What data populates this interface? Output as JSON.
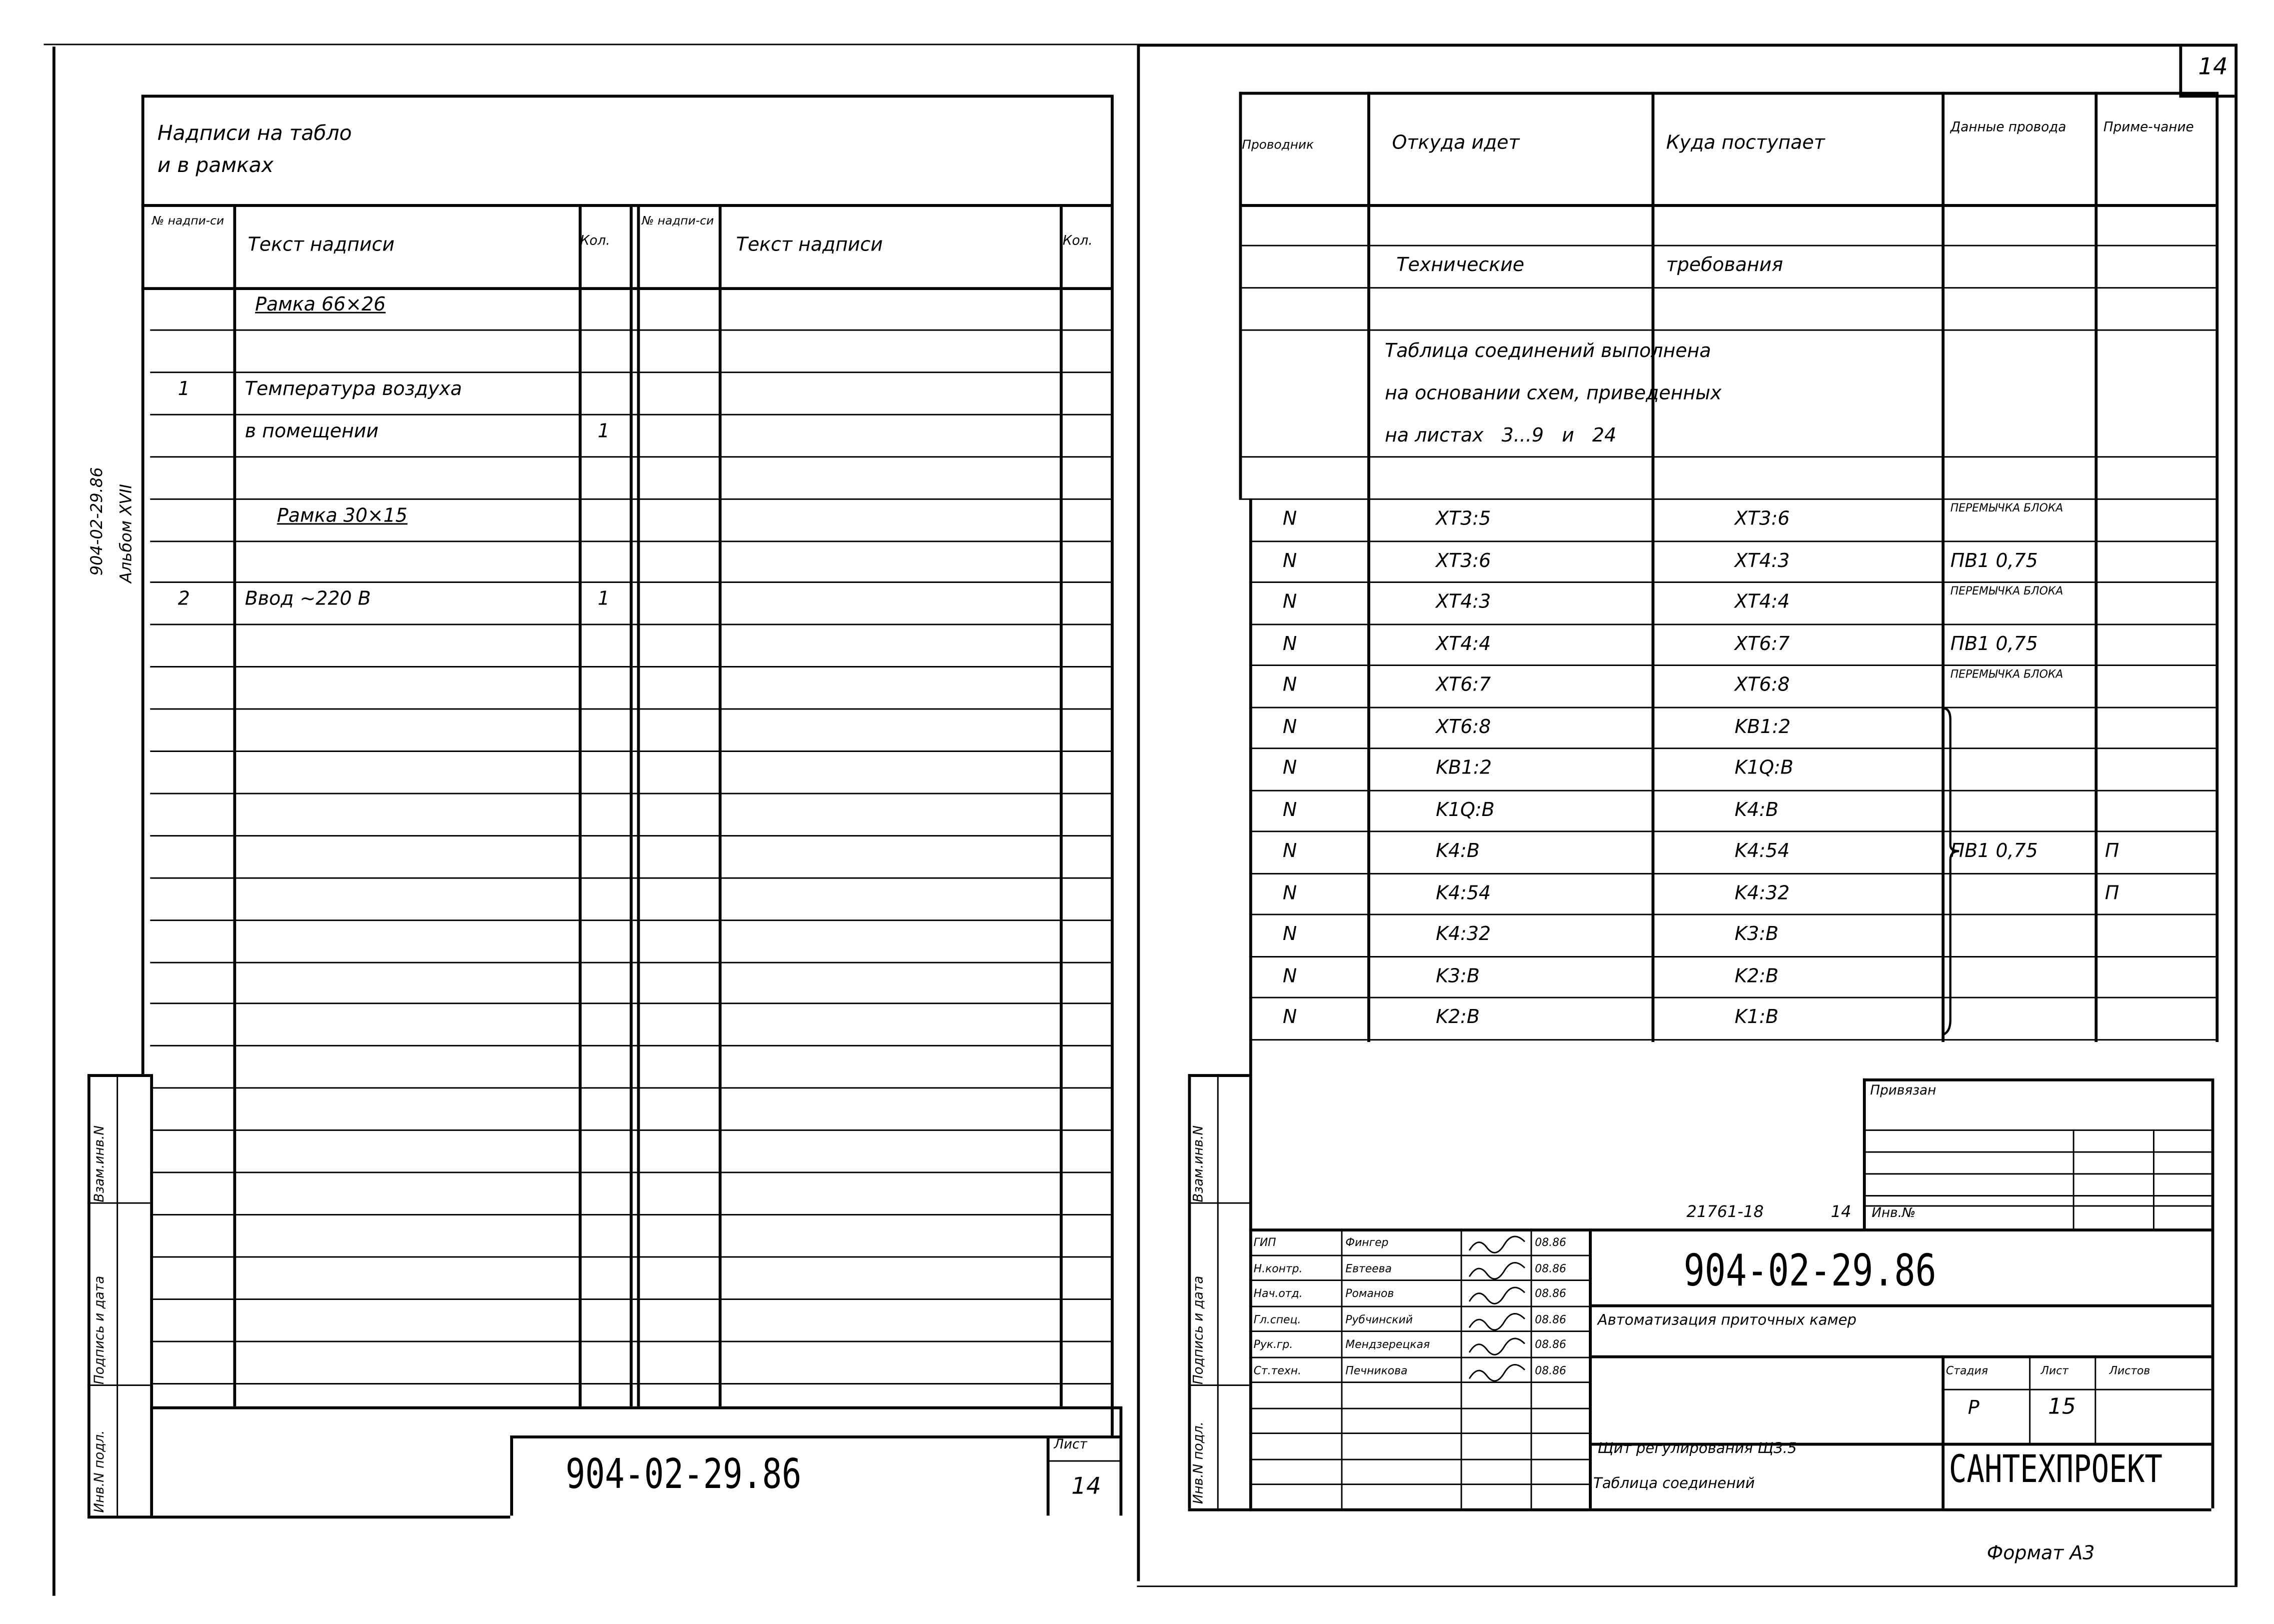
{
  "left_sheet": {
    "title_line1": "Надписи на табло",
    "title_line2": "и в рамках",
    "headers": {
      "num": "№ надпи-си",
      "text": "Текст надписи",
      "qty": "Кол."
    },
    "rows": [
      {
        "row": 0,
        "num": "",
        "text": "Рамка 66×26",
        "qty": ""
      },
      {
        "row": 2,
        "num": "1",
        "text": "Температура воздуха",
        "qty": ""
      },
      {
        "row": 3,
        "num": "",
        "text": "в помещении",
        "qty": "1"
      },
      {
        "row": 5,
        "num": "",
        "text": "Рамка 30×15",
        "qty": ""
      },
      {
        "row": 7,
        "num": "2",
        "text": "Ввод ~220 В",
        "qty": "1"
      }
    ],
    "side_code": "904-02-29.86",
    "side_album": "Альбом XVII",
    "stamp_labels": [
      "Инв.N подл.",
      "Подпись и дата",
      "Взам.инв.N"
    ],
    "doc_code": "904-02-29.86",
    "sheet_label": "Лист",
    "sheet_number": "14"
  },
  "right_sheet": {
    "page_number": "14",
    "headers": {
      "wire": "Проводник",
      "from": "Откуда идет",
      "to": "Куда поступает",
      "data": "Данные провода",
      "note": "Приме-чание"
    },
    "tech_req": {
      "a": "Технические",
      "b": "требования"
    },
    "note_lines": [
      "Таблица соединений выполнена",
      "на основании схем, приведенных",
      "на листах   3...9   и   24"
    ],
    "connections": [
      {
        "wire": "N",
        "from": "XT3:5",
        "to": "XT3:6",
        "data": "ПЕРЕМЫЧКА БЛОКА",
        "note": ""
      },
      {
        "wire": "N",
        "from": "XT3:6",
        "to": "XT4:3",
        "data": "ПВ1   0,75",
        "note": ""
      },
      {
        "wire": "N",
        "from": "XT4:3",
        "to": "XT4:4",
        "data": "ПЕРЕМЫЧКА БЛОКА",
        "note": ""
      },
      {
        "wire": "N",
        "from": "XT4:4",
        "to": "XT6:7",
        "data": "ПВ1  0,75",
        "note": ""
      },
      {
        "wire": "N",
        "from": "XT6:7",
        "to": "XT6:8",
        "data": "ПЕРЕМЫЧКА БЛОКА",
        "note": ""
      },
      {
        "wire": "N",
        "from": "XT6:8",
        "to": "KB1:2",
        "data": "",
        "note": ""
      },
      {
        "wire": "N",
        "from": "KB1:2",
        "to": "K1Q:B",
        "data": "",
        "note": ""
      },
      {
        "wire": "N",
        "from": "K1Q:B",
        "to": "K4:B",
        "data": "",
        "note": ""
      },
      {
        "wire": "N",
        "from": "K4:B",
        "to": "K4:54",
        "data": "ПВ1 0,75",
        "note": "П"
      },
      {
        "wire": "N",
        "from": "K4:54",
        "to": "K4:32",
        "data": "",
        "note": "П"
      },
      {
        "wire": "N",
        "from": "K4:32",
        "to": "K3:B",
        "data": "",
        "note": ""
      },
      {
        "wire": "N",
        "from": "K3:B",
        "to": "K2:B",
        "data": "",
        "note": ""
      },
      {
        "wire": "N",
        "from": "K2:B",
        "to": "K1:B",
        "data": "",
        "note": ""
      }
    ],
    "stamp_labels": [
      "Инв.N подл.",
      "Подпись и дата",
      "Взам.инв.N"
    ],
    "title_block": {
      "bound_label": "Привязан",
      "inv_ref": "21761-18",
      "inv_ref_sheet": "14",
      "inv_label": "Инв.№",
      "staff": [
        {
          "role": "ГИП",
          "name": "Фингер",
          "date": "08.86"
        },
        {
          "role": "Н.контр.",
          "name": "Евтеева",
          "date": "08.86"
        },
        {
          "role": "Нач.отд.",
          "name": "Романов",
          "date": "08.86"
        },
        {
          "role": "Гл.спец.",
          "name": "Рубчинский",
          "date": "08.86"
        },
        {
          "role": "Рук.гр.",
          "name": "Мендзерецкая",
          "date": "08.86"
        },
        {
          "role": "Ст.техн.",
          "name": "Печникова",
          "date": "08.86"
        }
      ],
      "doc_code": "904-02-29.86",
      "project_title": "Автоматизация приточных камер",
      "stage_label": "Стадия",
      "sheet_label": "Лист",
      "sheets_label": "Листов",
      "stage": "Р",
      "sheet": "15",
      "sheets": "",
      "drawing_title_1": "Щит регулирования ЩЗ.5",
      "drawing_title_2": "Таблица соединений",
      "organization": "САНТЕХПРОЕКТ"
    },
    "format": "Формат А3"
  }
}
